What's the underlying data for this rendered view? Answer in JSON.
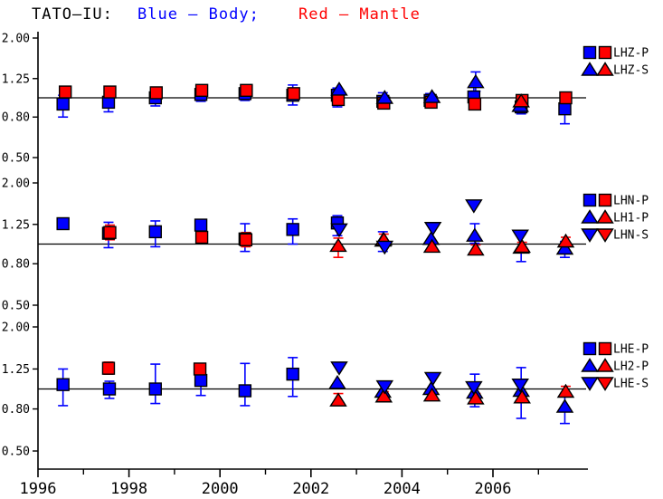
{
  "page": {
    "background": "#ffffff"
  },
  "chart_data": {
    "type": "scatter",
    "title_parts": [
      {
        "text": "TATO–IU:",
        "color": "#000000"
      },
      {
        "text": "Blue — Body;",
        "color": "#0000ff"
      },
      {
        "text": "Red — Mantle",
        "color": "#ff0000"
      }
    ],
    "colors": {
      "body": "#0000ff",
      "mantle": "#ff0000",
      "axis": "#000000"
    },
    "x_axis": {
      "start": 1996,
      "end": 2008.1,
      "major_ticks": [
        1996,
        1998,
        2000,
        2002,
        2004,
        2006
      ],
      "minor_ticks": [
        1997,
        1999,
        2001,
        2003,
        2005,
        2007
      ]
    },
    "y_axis": {
      "scale": "log",
      "top": 2.0,
      "bottom": 0.5,
      "tick_values": [
        2.0,
        1.25,
        0.8,
        0.5
      ],
      "tick_labels": [
        "2.00",
        "1.25",
        "0.80",
        "0.50"
      ]
    },
    "reference_value": 1.0,
    "panels": [
      {
        "name": "LHZ",
        "legend": [
          {
            "label": "LHZ-P",
            "marker": "square"
          },
          {
            "label": "LHZ-S",
            "marker": "tri-up"
          }
        ],
        "series": [
          {
            "name": "LHZ-P body",
            "color": "#0000ff",
            "marker": "square",
            "points": [
              {
                "x": 1996.55,
                "v": 0.93,
                "lo": 0.8,
                "hi": 1.03
              },
              {
                "x": 1997.55,
                "v": 0.95,
                "lo": 0.85,
                "hi": 1.04
              },
              {
                "x": 1998.58,
                "v": 1.0,
                "lo": 0.91,
                "hi": 1.08
              },
              {
                "x": 1999.58,
                "v": 1.04,
                "lo": 0.96,
                "hi": 1.1
              },
              {
                "x": 2000.55,
                "v": 1.05,
                "lo": 0.97,
                "hi": 1.12
              },
              {
                "x": 2001.6,
                "v": 1.03,
                "lo": 0.92,
                "hi": 1.16
              },
              {
                "x": 2002.58,
                "v": 1.03,
                "lo": 0.9,
                "hi": 1.12
              },
              {
                "x": 2003.58,
                "v": 0.96,
                "lo": 0.88,
                "hi": 1.06
              },
              {
                "x": 2004.62,
                "v": 0.97,
                "lo": 0.89,
                "hi": 1.05
              },
              {
                "x": 2005.58,
                "v": 1.01,
                "lo": 0.91,
                "hi": 1.13
              },
              {
                "x": 2006.62,
                "v": 0.9,
                "lo": 0.83,
                "hi": 0.99
              },
              {
                "x": 2007.58,
                "v": 0.88,
                "lo": 0.74,
                "hi": 0.97
              }
            ]
          },
          {
            "name": "LHZ-P mantle",
            "color": "#ff0000",
            "marker": "square",
            "points": [
              {
                "x": 1996.6,
                "v": 1.07,
                "lo": 1.02,
                "hi": 1.12
              },
              {
                "x": 1997.58,
                "v": 1.07,
                "lo": 1.03,
                "hi": 1.11
              },
              {
                "x": 1998.6,
                "v": 1.06,
                "lo": 1.02,
                "hi": 1.11
              },
              {
                "x": 1999.6,
                "v": 1.09,
                "lo": 1.05,
                "hi": 1.13
              },
              {
                "x": 2000.58,
                "v": 1.09,
                "lo": 1.05,
                "hi": 1.13
              },
              {
                "x": 2001.62,
                "v": 1.05,
                "lo": 1.01,
                "hi": 1.1
              },
              {
                "x": 2002.6,
                "v": 0.98,
                "lo": 0.92,
                "hi": 1.09
              },
              {
                "x": 2003.6,
                "v": 0.94,
                "lo": 0.9,
                "hi": 0.99
              },
              {
                "x": 2004.64,
                "v": 0.95,
                "lo": 0.91,
                "hi": 1.0
              },
              {
                "x": 2005.6,
                "v": 0.93,
                "lo": 0.89,
                "hi": 0.98
              },
              {
                "x": 2006.64,
                "v": 0.97,
                "lo": 0.93,
                "hi": 1.01
              },
              {
                "x": 2007.6,
                "v": 1.0,
                "lo": 0.96,
                "hi": 1.05
              }
            ]
          },
          {
            "name": "LHZ-S body",
            "color": "#0000ff",
            "marker": "tri-up",
            "points": [
              {
                "x": 2002.62,
                "v": 1.1
              },
              {
                "x": 2003.62,
                "v": 1.0
              },
              {
                "x": 2004.66,
                "v": 1.01
              },
              {
                "x": 2005.62,
                "v": 1.2,
                "lo": 1.08,
                "hi": 1.35
              },
              {
                "x": 2006.6,
                "v": 0.91
              }
            ]
          },
          {
            "name": "LHZ-S mantle",
            "color": "#ff0000",
            "marker": "tri-up",
            "points": [
              {
                "x": 2006.62,
                "v": 0.96
              }
            ]
          }
        ]
      },
      {
        "name": "LHN",
        "legend": [
          {
            "label": "LHN-P",
            "marker": "square"
          },
          {
            "label": "LH1-P",
            "marker": "tri-up"
          },
          {
            "label": "LHN-S",
            "marker": "tri-down"
          }
        ],
        "series": [
          {
            "name": "LHN-P body",
            "color": "#0000ff",
            "marker": "square",
            "points": [
              {
                "x": 1996.55,
                "v": 1.26,
                "lo": 1.19,
                "hi": 1.33
              },
              {
                "x": 1997.55,
                "v": 1.13,
                "lo": 0.96,
                "hi": 1.28
              },
              {
                "x": 1998.58,
                "v": 1.15,
                "lo": 0.97,
                "hi": 1.3
              },
              {
                "x": 1999.58,
                "v": 1.24,
                "lo": 1.17,
                "hi": 1.3
              },
              {
                "x": 2000.55,
                "v": 1.06,
                "lo": 0.92,
                "hi": 1.26
              },
              {
                "x": 2001.6,
                "v": 1.18,
                "lo": 1.0,
                "hi": 1.33
              },
              {
                "x": 2002.58,
                "v": 1.27,
                "lo": 1.1,
                "hi": 1.38
              }
            ]
          },
          {
            "name": "LHN-P mantle",
            "color": "#ff0000",
            "marker": "square",
            "points": [
              {
                "x": 1997.58,
                "v": 1.14,
                "lo": 1.05,
                "hi": 1.24
              },
              {
                "x": 1999.6,
                "v": 1.08,
                "lo": 1.03,
                "hi": 1.14
              },
              {
                "x": 2000.57,
                "v": 1.05,
                "lo": 0.97,
                "hi": 1.14
              }
            ]
          },
          {
            "name": "LH1-P body",
            "color": "#0000ff",
            "marker": "tri-up",
            "points": [
              {
                "x": 2003.58,
                "v": 1.04,
                "lo": 0.92,
                "hi": 1.15
              },
              {
                "x": 2004.64,
                "v": 1.06
              },
              {
                "x": 2005.6,
                "v": 1.1,
                "lo": 1.01,
                "hi": 1.26
              },
              {
                "x": 2006.62,
                "v": 0.96,
                "lo": 0.82,
                "hi": 1.12
              },
              {
                "x": 2007.58,
                "v": 0.95,
                "lo": 0.86,
                "hi": 1.03
              }
            ]
          },
          {
            "name": "LH1-P mantle",
            "color": "#ff0000",
            "marker": "tri-up",
            "points": [
              {
                "x": 2002.6,
                "v": 0.98,
                "lo": 0.86,
                "hi": 1.07
              },
              {
                "x": 2003.6,
                "v": 1.05,
                "lo": 0.98,
                "hi": 1.12
              },
              {
                "x": 2004.66,
                "v": 0.97,
                "lo": 0.92,
                "hi": 1.03
              },
              {
                "x": 2005.62,
                "v": 0.94,
                "lo": 0.9,
                "hi": 0.99
              },
              {
                "x": 2006.64,
                "v": 0.97,
                "lo": 0.92,
                "hi": 1.02
              },
              {
                "x": 2007.6,
                "v": 1.03,
                "lo": 0.98,
                "hi": 1.08
              }
            ]
          },
          {
            "name": "LHN-S body",
            "color": "#0000ff",
            "marker": "tri-down",
            "points": [
              {
                "x": 2002.62,
                "v": 1.18
              },
              {
                "x": 2003.62,
                "v": 0.97
              },
              {
                "x": 2004.68,
                "v": 1.2
              },
              {
                "x": 2005.58,
                "v": 1.55
              },
              {
                "x": 2006.6,
                "v": 1.1
              }
            ]
          }
        ]
      },
      {
        "name": "LHE",
        "legend": [
          {
            "label": "LHE-P",
            "marker": "square"
          },
          {
            "label": "LH2-P",
            "marker": "tri-up"
          },
          {
            "label": "LHE-S",
            "marker": "tri-down"
          }
        ],
        "series": [
          {
            "name": "LHE-P body",
            "color": "#0000ff",
            "marker": "square",
            "points": [
              {
                "x": 1996.55,
                "v": 1.05,
                "lo": 0.83,
                "hi": 1.25
              },
              {
                "x": 1997.57,
                "v": 1.0,
                "lo": 0.9,
                "hi": 1.09
              },
              {
                "x": 1998.58,
                "v": 1.0,
                "lo": 0.85,
                "hi": 1.32
              },
              {
                "x": 1999.58,
                "v": 1.1,
                "lo": 0.93,
                "hi": 1.25
              },
              {
                "x": 2000.55,
                "v": 0.98,
                "lo": 0.83,
                "hi": 1.33
              },
              {
                "x": 2001.6,
                "v": 1.18,
                "lo": 0.92,
                "hi": 1.42
              }
            ]
          },
          {
            "name": "LHE-P mantle",
            "color": "#ff0000",
            "marker": "square",
            "points": [
              {
                "x": 1997.55,
                "v": 1.26,
                "lo": 1.18,
                "hi": 1.35
              },
              {
                "x": 1999.56,
                "v": 1.25,
                "lo": 1.17,
                "hi": 1.33
              }
            ]
          },
          {
            "name": "LH2-P body",
            "color": "#0000ff",
            "marker": "tri-up",
            "points": [
              {
                "x": 2002.58,
                "v": 1.07
              },
              {
                "x": 2003.58,
                "v": 0.97
              },
              {
                "x": 2004.64,
                "v": 1.0
              },
              {
                "x": 2005.6,
                "v": 0.96,
                "lo": 0.82,
                "hi": 1.18
              },
              {
                "x": 2006.62,
                "v": 0.98,
                "lo": 0.72,
                "hi": 1.27
              },
              {
                "x": 2007.58,
                "v": 0.82,
                "lo": 0.68,
                "hi": 0.95
              }
            ]
          },
          {
            "name": "LH2-P mantle",
            "color": "#ff0000",
            "marker": "tri-up",
            "points": [
              {
                "x": 2002.6,
                "v": 0.88,
                "lo": 0.84,
                "hi": 0.95
              },
              {
                "x": 2003.6,
                "v": 0.92,
                "lo": 0.87,
                "hi": 0.97
              },
              {
                "x": 2004.66,
                "v": 0.93,
                "lo": 0.89,
                "hi": 0.98
              },
              {
                "x": 2005.62,
                "v": 0.9,
                "lo": 0.86,
                "hi": 0.95
              },
              {
                "x": 2006.64,
                "v": 0.91,
                "lo": 0.87,
                "hi": 0.96
              },
              {
                "x": 2007.6,
                "v": 0.97,
                "lo": 0.92,
                "hi": 1.03
              }
            ]
          },
          {
            "name": "LHE-S body",
            "color": "#0000ff",
            "marker": "tri-down",
            "points": [
              {
                "x": 2002.62,
                "v": 1.27
              },
              {
                "x": 2003.62,
                "v": 1.03
              },
              {
                "x": 2004.68,
                "v": 1.13
              },
              {
                "x": 2005.58,
                "v": 1.02
              },
              {
                "x": 2006.6,
                "v": 1.05
              }
            ]
          }
        ]
      }
    ]
  }
}
